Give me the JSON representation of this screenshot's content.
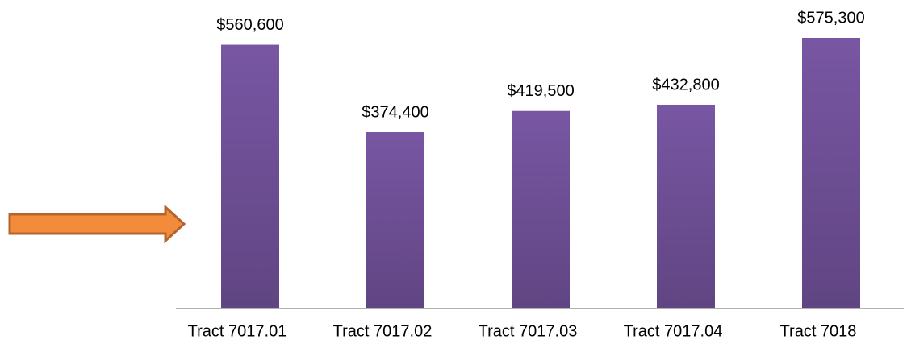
{
  "chart_data": {
    "type": "bar",
    "categories": [
      "Tract 7017.01",
      "Tract 7017.02",
      "Tract 7017.03",
      "Tract 7017.04",
      "Tract 7018"
    ],
    "values": [
      560600,
      374400,
      419500,
      432800,
      575300
    ],
    "value_labels": [
      "$560,600",
      "$374,400",
      "$419,500",
      "$432,800",
      "$575,300"
    ],
    "color": "#7856a3"
  }
}
